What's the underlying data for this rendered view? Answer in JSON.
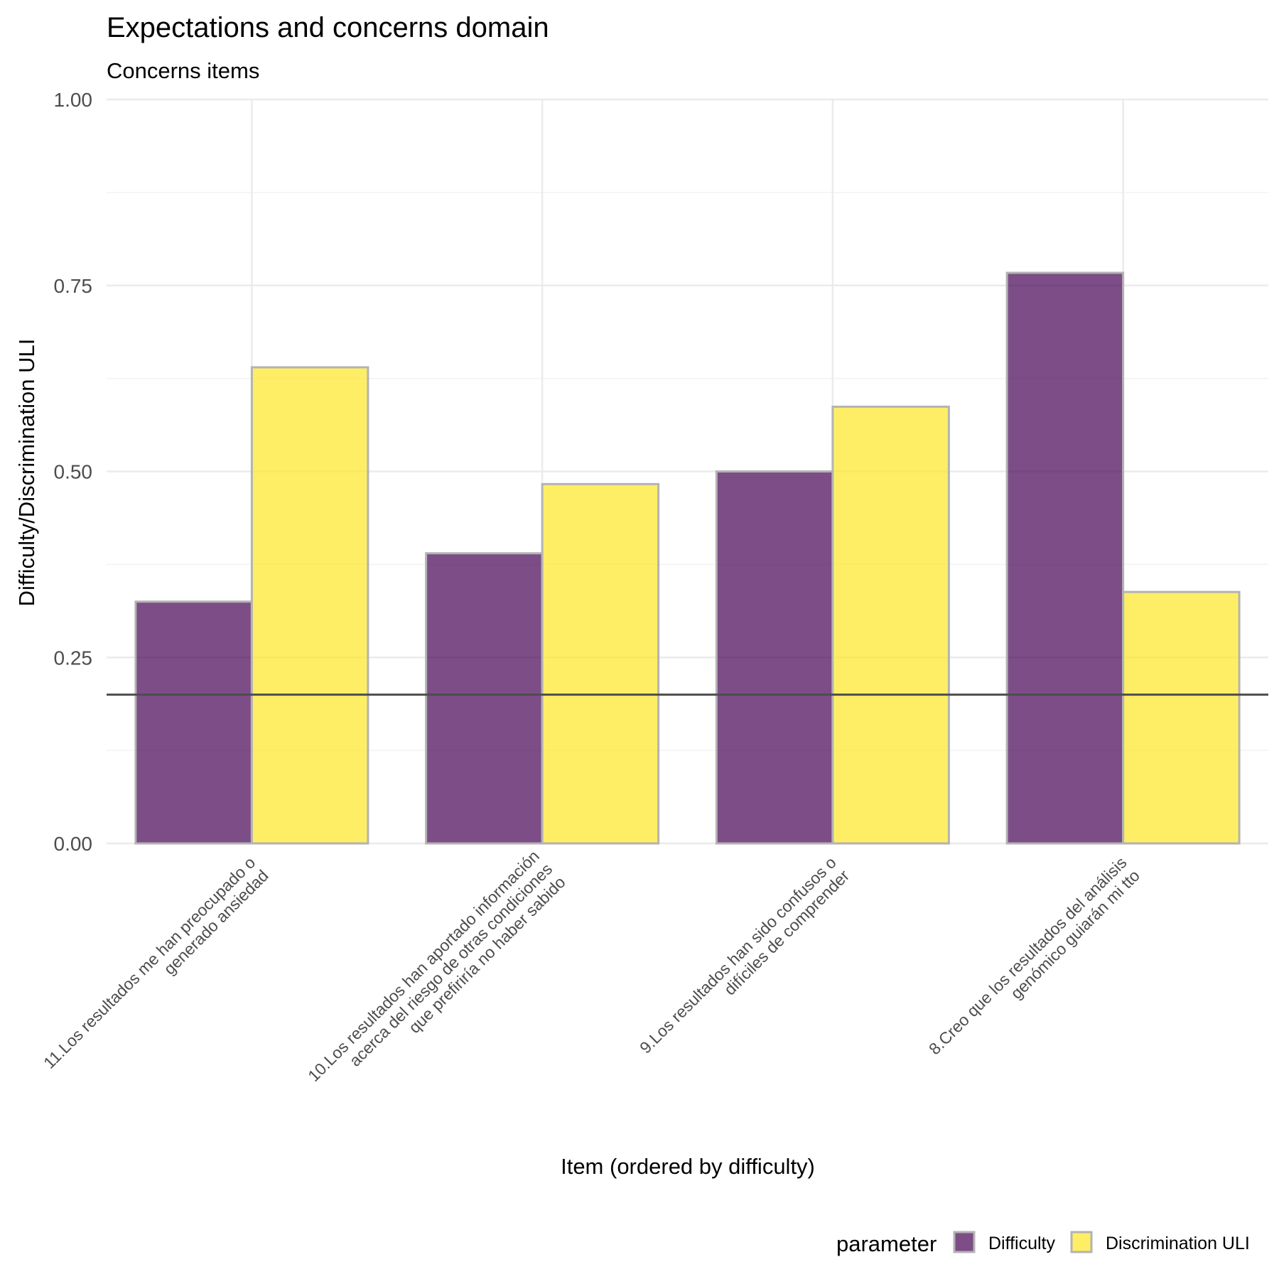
{
  "chart_data": {
    "type": "bar",
    "title": "Expectations and concerns domain",
    "subtitle": "Concerns items",
    "xlabel": "Item (ordered by difficulty)",
    "ylabel": "Difficulty/Discrimination ULI",
    "ylim": [
      0,
      1
    ],
    "yticks": [
      "0.00",
      "0.25",
      "0.50",
      "0.75",
      "1.00"
    ],
    "ytick_values": [
      0,
      0.25,
      0.5,
      0.75,
      1.0
    ],
    "grid": true,
    "reference_line": 0.2,
    "categories": [
      [
        "11.Los resultados me han preocupado o",
        "generado ansiedad"
      ],
      [
        "10.Los resultados han aportado información",
        "acerca del riesgo de otras condiciones",
        "que prefiriría no haber sabido"
      ],
      [
        "9.Los resultados han sido confusos o",
        "difíciles de comprender"
      ],
      [
        "8.Creo que los resultados del análisis",
        "genómico guiarán mi tto"
      ]
    ],
    "series": [
      {
        "name": "Difficulty",
        "color": "#440154",
        "values": [
          0.325,
          0.39,
          0.5,
          0.767
        ]
      },
      {
        "name": "Discrimination ULI",
        "color": "#FDE725",
        "values": [
          0.64,
          0.483,
          0.587,
          0.338
        ]
      }
    ],
    "legend": {
      "title": "parameter",
      "position": "bottom-right"
    }
  }
}
